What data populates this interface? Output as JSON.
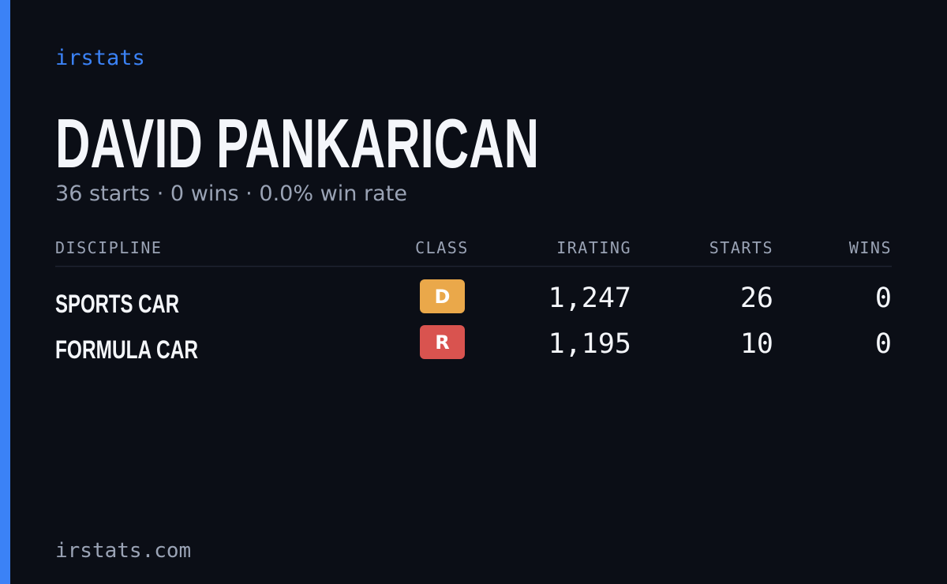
{
  "brand": "irstats",
  "title": "DAVID PANKARICAN",
  "summary": "36 starts · 0 wins · 0.0% win rate",
  "table": {
    "headers": [
      "DISCIPLINE",
      "CLASS",
      "IRATING",
      "STARTS",
      "WINS"
    ],
    "rows": [
      [
        "SPORTS CAR",
        "D",
        "1,247",
        "26",
        "0"
      ],
      [
        "FORMULA CAR",
        "R",
        "1,195",
        "10",
        "0"
      ]
    ]
  },
  "footer": "irstats.com"
}
